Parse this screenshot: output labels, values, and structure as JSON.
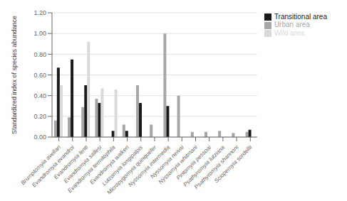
{
  "chart_data": {
    "type": "bar",
    "categories": [
      "Brumptomyia avellari",
      "Evandromyia evandroi",
      "Evandromyia lenti",
      "Evandromyia sallesi",
      "Evandromyia termitophila",
      "Evandromyia walkeri",
      "Lutzomyia longipalpis",
      "Micropygomyia quinquefer",
      "Nyssomyia intermedia",
      "Nyssomyia neivai",
      "Nyssomyia whitmani",
      "Pintomyia pessoai",
      "Psathyromyia lutziana",
      "Psathyromyia shannoni",
      "Sciopemyia sordellii"
    ],
    "series": [
      {
        "name": "Urban area",
        "color": "#a6a6a6",
        "values": [
          0.16,
          0.19,
          0.29,
          0.37,
          0.0,
          0.12,
          0.5,
          0.12,
          1.0,
          0.4,
          0.05,
          0.05,
          0.06,
          0.04,
          0.05
        ]
      },
      {
        "name": "Transitional area",
        "color": "#1a1a1a",
        "values": [
          0.67,
          0.75,
          0.5,
          0.33,
          0.06,
          0.06,
          0.33,
          0.0,
          0.3,
          0.0,
          0.0,
          0.0,
          0.0,
          0.0,
          0.07
        ]
      },
      {
        "name": "Wild area",
        "color": "#d9d9d9",
        "values": [
          0.5,
          0.0,
          0.92,
          0.47,
          0.46,
          0.0,
          0.0,
          0.0,
          0.0,
          0.0,
          0.0,
          0.0,
          0.0,
          0.0,
          0.0
        ]
      }
    ],
    "y_label": "Standardized index of species abundance",
    "ylim": [
      0,
      1.2
    ],
    "yticks": [
      {
        "value": 0,
        "label": "0.00"
      },
      {
        "value": 0.2,
        "label": "0.20"
      },
      {
        "value": 0.4,
        "label": "0.40"
      },
      {
        "value": 0.6,
        "label": "0.60"
      },
      {
        "value": 0.8,
        "label": "0.80"
      },
      {
        "value": 1.0,
        "label": "1.00"
      },
      {
        "value": 1.2,
        "label": "1.20"
      }
    ],
    "grid": true,
    "legend": "right"
  }
}
